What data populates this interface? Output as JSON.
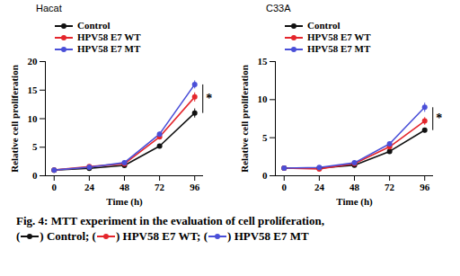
{
  "chart_data": [
    {
      "type": "line",
      "title": "Hacat",
      "x_label": "Time (h)",
      "y_label": "Relative cell proliferation",
      "x": [
        0,
        24,
        48,
        72,
        96
      ],
      "xlim": [
        -6,
        102
      ],
      "xticks": [
        0,
        24,
        48,
        72,
        96
      ],
      "ylim": [
        0,
        20
      ],
      "yticks": [
        0,
        5,
        10,
        15,
        20
      ],
      "grid": false,
      "legend": "upper left",
      "series": [
        {
          "name": "Control",
          "color": "#111111",
          "marker": "circle",
          "line_style": "solid",
          "values": [
            1,
            1.3,
            1.8,
            5.2,
            11
          ],
          "errors": [
            0.1,
            0.15,
            0.2,
            0.3,
            0.8
          ]
        },
        {
          "name": "HPV58 E7 WT",
          "color": "#e4262c",
          "marker": "circle",
          "line_style": "solid",
          "values": [
            1,
            1.6,
            2.1,
            6.8,
            13.8
          ],
          "errors": [
            0.1,
            0.15,
            0.2,
            0.4,
            0.8
          ]
        },
        {
          "name": "HPV58 E7 MT",
          "color": "#4a4fd8",
          "marker": "circle",
          "line_style": "solid",
          "values": [
            1,
            1.5,
            2.3,
            7.3,
            16
          ],
          "errors": [
            0.1,
            0.15,
            0.2,
            0.4,
            0.7
          ]
        }
      ],
      "annotations": [
        {
          "text": "*",
          "x": 96
        }
      ]
    },
    {
      "type": "line",
      "title": "C33A",
      "x_label": "Time (h)",
      "y_label": "Relative cell proliferation",
      "x": [
        0,
        24,
        48,
        72,
        96
      ],
      "xlim": [
        -6,
        102
      ],
      "xticks": [
        0,
        24,
        48,
        72,
        96
      ],
      "ylim": [
        0,
        15
      ],
      "yticks": [
        0,
        5,
        10,
        15
      ],
      "grid": false,
      "legend": "upper left",
      "series": [
        {
          "name": "Control",
          "color": "#111111",
          "marker": "circle",
          "line_style": "solid",
          "values": [
            1,
            1,
            1.4,
            3.2,
            6
          ],
          "errors": [
            0.1,
            0.1,
            0.1,
            0.2,
            0.3
          ]
        },
        {
          "name": "HPV58 E7 WT",
          "color": "#e4262c",
          "marker": "circle",
          "line_style": "solid",
          "values": [
            1,
            0.9,
            1.6,
            3.8,
            7.2
          ],
          "errors": [
            0.1,
            0.1,
            0.1,
            0.3,
            0.5
          ]
        },
        {
          "name": "HPV58 E7 MT",
          "color": "#4a4fd8",
          "marker": "circle",
          "line_style": "solid",
          "values": [
            1,
            1.1,
            1.7,
            4.2,
            9
          ],
          "errors": [
            0.1,
            0.1,
            0.1,
            0.3,
            0.6
          ]
        }
      ],
      "annotations": [
        {
          "text": "*",
          "x": 96
        }
      ]
    }
  ],
  "caption": {
    "text": "Fig. 4: MTT experiment in the evaluation of cell proliferation,",
    "keys": [
      {
        "before": "(",
        "after": ") Control;",
        "color": "#111111"
      },
      {
        "before": "(",
        "after": ") HPV58 E7 WT;",
        "color": "#e4262c"
      },
      {
        "before": "(",
        "after": ") HPV58 E7 MT",
        "color": "#4a4fd8"
      }
    ]
  }
}
